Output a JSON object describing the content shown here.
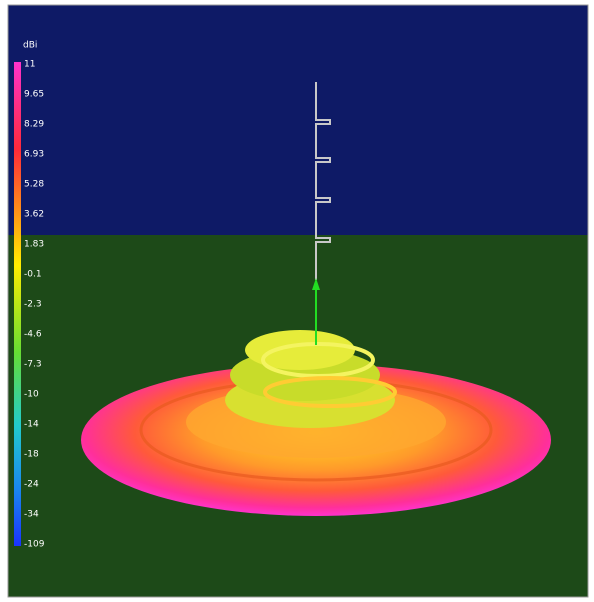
{
  "legend": {
    "unit": "dBi",
    "labels": [
      "11",
      "9.65",
      "8.29",
      "6.93",
      "5.28",
      "3.62",
      "1.83",
      "-0.1",
      "-2.3",
      "-4.6",
      "-7.3",
      "-10",
      "-14",
      "-18",
      "-24",
      "-34",
      "-109"
    ]
  }
}
